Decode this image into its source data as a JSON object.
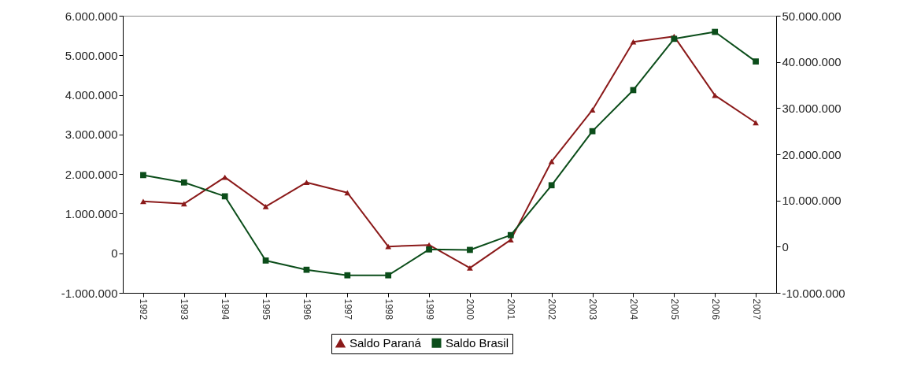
{
  "chart_data": {
    "type": "line",
    "categories": [
      "1992",
      "1993",
      "1994",
      "1995",
      "1996",
      "1997",
      "1998",
      "1999",
      "2000",
      "2001",
      "2002",
      "2003",
      "2004",
      "2005",
      "2006",
      "2007"
    ],
    "series": [
      {
        "name": "Saldo Paraná",
        "color": "#8b1a1a",
        "marker": "triangle",
        "values": [
          1310000,
          1250000,
          1920000,
          1180000,
          1790000,
          1530000,
          170000,
          210000,
          -370000,
          340000,
          2320000,
          3620000,
          5340000,
          5480000,
          3990000,
          3300000
        ]
      },
      {
        "name": "Saldo Brasil",
        "color": "#0b4d1a",
        "marker": "square",
        "axis": "y2",
        "values": [
          15500000,
          13900000,
          10900000,
          -3000000,
          -5000000,
          -6200000,
          -6200000,
          -600000,
          -700000,
          2500000,
          13300000,
          25000000,
          33900000,
          45000000,
          46500000,
          40100000
        ]
      }
    ],
    "ylim": [
      -1000000,
      6000000
    ],
    "yticks": [
      {
        "value": -1000000,
        "label": "-1.000.000"
      },
      {
        "value": 0,
        "label": "0"
      },
      {
        "value": 1000000,
        "label": "1.000.000"
      },
      {
        "value": 2000000,
        "label": "2.000.000"
      },
      {
        "value": 3000000,
        "label": "3.000.000"
      },
      {
        "value": 4000000,
        "label": "4.000.000"
      },
      {
        "value": 5000000,
        "label": "5.000.000"
      },
      {
        "value": 6000000,
        "label": "6.000.000"
      }
    ],
    "y2lim": [
      -10000000,
      50000000
    ],
    "y2ticks": [
      {
        "value": -10000000,
        "label": "-10.000.000"
      },
      {
        "value": 0,
        "label": "0"
      },
      {
        "value": 10000000,
        "label": "10.000.000"
      },
      {
        "value": 20000000,
        "label": "20.000.000"
      },
      {
        "value": 30000000,
        "label": "30.000.000"
      },
      {
        "value": 40000000,
        "label": "40.000.000"
      },
      {
        "value": 50000000,
        "label": "50.000.000"
      }
    ],
    "grid": false,
    "legend": "bottom"
  }
}
